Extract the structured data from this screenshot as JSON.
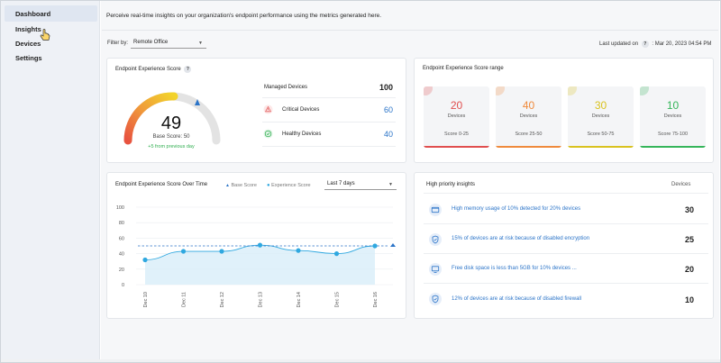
{
  "sidebar": {
    "items": [
      {
        "label": "Dashboard",
        "active": true
      },
      {
        "label": "Insights",
        "active": false
      },
      {
        "label": "Devices",
        "active": false
      },
      {
        "label": "Settings",
        "active": false
      }
    ]
  },
  "header": {
    "intro": "Perceive real-time insights on your organization's endpoint performance using the metrics generated here.",
    "filter_label": "Filter by:",
    "filter_value": "Remote Office",
    "updated_label": "Last updated on",
    "updated_value": ": Mar 20, 2023 04:54 PM"
  },
  "score_card": {
    "title": "Endpoint Experience Score",
    "score": "49",
    "base_score": "Base Score: 50",
    "change": "+5 from previous day",
    "managed_label": "Managed Devices",
    "managed_value": "100",
    "critical_label": "Critical Devices",
    "critical_value": "60",
    "healthy_label": "Healthy Devices",
    "healthy_value": "40",
    "colors": {
      "critical": "#e05555",
      "healthy": "#2fae4f",
      "value": "#2b74c8"
    }
  },
  "range_card": {
    "title": "Endpoint Experience Score range",
    "tiles": [
      {
        "value": "20",
        "label": "Devices",
        "range": "Score 0-25",
        "color": "#e04e4e"
      },
      {
        "value": "40",
        "label": "Devices",
        "range": "Score 25-50",
        "color": "#ef8a3c"
      },
      {
        "value": "30",
        "label": "Devices",
        "range": "Score 50-75",
        "color": "#d9c21f"
      },
      {
        "value": "10",
        "label": "Devices",
        "range": "Score 75-100",
        "color": "#35b55a"
      }
    ]
  },
  "chart_data": {
    "type": "line",
    "title": "Endpoint Experience Score Over Time",
    "categories": [
      "Dec 10",
      "Dec 11",
      "Dec 12",
      "Dec 13",
      "Dec 14",
      "Dec 15",
      "Dec 16"
    ],
    "series": [
      {
        "name": "Base Score",
        "values": [
          50,
          50,
          50,
          50,
          50,
          50,
          50
        ],
        "style": "dashed",
        "color": "#2b74c8"
      },
      {
        "name": "Experience Score",
        "values": [
          32,
          43,
          43,
          51,
          44,
          40,
          50
        ],
        "style": "area",
        "color": "#2fa8e0"
      }
    ],
    "yticks": [
      "0",
      "20",
      "40",
      "60",
      "80",
      "100"
    ],
    "ylim": [
      0,
      100
    ],
    "grid": true,
    "legend_position": "top-right",
    "period": "Last 7 days"
  },
  "insights": {
    "title": "High priority insights",
    "devices_header": "Devices",
    "items": [
      {
        "text": "High memory usage of 10% detected for 20% devices",
        "count": "30",
        "icon": "memory-icon"
      },
      {
        "text": "15% of devices are at risk because of disabled encryption",
        "count": "25",
        "icon": "shield-icon"
      },
      {
        "text": "Free disk space is less than 5GB for 10% devices ...",
        "count": "20",
        "icon": "monitor-icon"
      },
      {
        "text": "12% of devices are at risk because of disabled firewall",
        "count": "10",
        "icon": "shield-icon"
      }
    ]
  }
}
